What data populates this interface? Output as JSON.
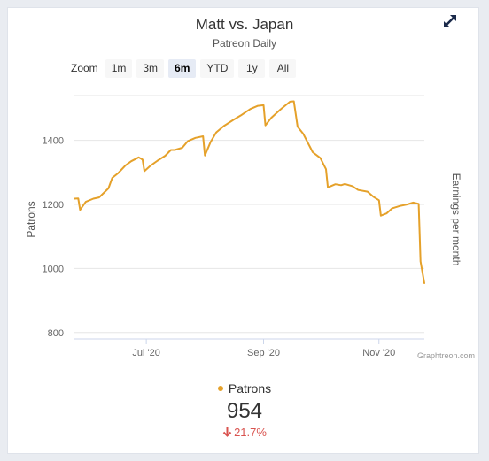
{
  "header": {
    "title": "Matt vs. Japan",
    "subtitle": "Patreon Daily"
  },
  "zoom": {
    "label": "Zoom",
    "buttons": [
      {
        "label": "1m",
        "active": false
      },
      {
        "label": "3m",
        "active": false
      },
      {
        "label": "6m",
        "active": true
      },
      {
        "label": "YTD",
        "active": false
      },
      {
        "label": "1y",
        "active": false
      },
      {
        "label": "All",
        "active": false
      }
    ]
  },
  "credit": "Graphtreon.com",
  "legend": {
    "series_label": "Patrons",
    "current_value": "954",
    "change": "21.7%"
  },
  "colors": {
    "series": "#e5a12a",
    "negative": "#d9534f",
    "grid": "#e6e6e6"
  },
  "icons": {
    "expand": "expand-arrows-icon",
    "change": "arrow-down-icon"
  },
  "chart_data": {
    "type": "line",
    "title": "Matt vs. Japan",
    "subtitle": "Patreon Daily",
    "ylabel": "Patrons",
    "y2label": "Earnings per month",
    "ylim": [
      780,
      1540
    ],
    "yticks": [
      800,
      1000,
      1200,
      1400
    ],
    "xlim": [
      "2020-05-24",
      "2020-11-25"
    ],
    "xticks": [
      {
        "label": "Jul '20",
        "date": "2020-07-01"
      },
      {
        "label": "Sep '20",
        "date": "2020-09-01"
      },
      {
        "label": "Nov '20",
        "date": "2020-11-01"
      }
    ],
    "grid": true,
    "legend": "bottom",
    "series": [
      {
        "name": "Patrons",
        "color": "#e5a12a",
        "points": [
          [
            "2020-05-24",
            1218
          ],
          [
            "2020-05-26",
            1219
          ],
          [
            "2020-05-27",
            1183
          ],
          [
            "2020-05-30",
            1208
          ],
          [
            "2020-06-03",
            1218
          ],
          [
            "2020-06-06",
            1222
          ],
          [
            "2020-06-11",
            1250
          ],
          [
            "2020-06-13",
            1283
          ],
          [
            "2020-06-16",
            1297
          ],
          [
            "2020-06-20",
            1322
          ],
          [
            "2020-06-23",
            1335
          ],
          [
            "2020-06-27",
            1347
          ],
          [
            "2020-06-29",
            1340
          ],
          [
            "2020-06-30",
            1304
          ],
          [
            "2020-07-03",
            1320
          ],
          [
            "2020-07-07",
            1337
          ],
          [
            "2020-07-11",
            1352
          ],
          [
            "2020-07-14",
            1370
          ],
          [
            "2020-07-16",
            1370
          ],
          [
            "2020-07-20",
            1377
          ],
          [
            "2020-07-23",
            1398
          ],
          [
            "2020-07-27",
            1408
          ],
          [
            "2020-07-31",
            1413
          ],
          [
            "2020-08-01",
            1353
          ],
          [
            "2020-08-04",
            1395
          ],
          [
            "2020-08-07",
            1425
          ],
          [
            "2020-08-11",
            1445
          ],
          [
            "2020-08-16",
            1464
          ],
          [
            "2020-08-20",
            1478
          ],
          [
            "2020-08-25",
            1498
          ],
          [
            "2020-08-29",
            1508
          ],
          [
            "2020-09-01",
            1510
          ],
          [
            "2020-09-02",
            1447
          ],
          [
            "2020-09-05",
            1470
          ],
          [
            "2020-09-10",
            1497
          ],
          [
            "2020-09-15",
            1521
          ],
          [
            "2020-09-17",
            1522
          ],
          [
            "2020-09-19",
            1443
          ],
          [
            "2020-09-22",
            1420
          ],
          [
            "2020-09-27",
            1363
          ],
          [
            "2020-10-01",
            1345
          ],
          [
            "2020-10-04",
            1310
          ],
          [
            "2020-10-05",
            1253
          ],
          [
            "2020-10-09",
            1263
          ],
          [
            "2020-10-12",
            1260
          ],
          [
            "2020-10-14",
            1264
          ],
          [
            "2020-10-18",
            1257
          ],
          [
            "2020-10-21",
            1245
          ],
          [
            "2020-10-26",
            1240
          ],
          [
            "2020-10-29",
            1224
          ],
          [
            "2020-11-01",
            1213
          ],
          [
            "2020-11-02",
            1165
          ],
          [
            "2020-11-05",
            1172
          ],
          [
            "2020-11-08",
            1188
          ],
          [
            "2020-11-12",
            1195
          ],
          [
            "2020-11-16",
            1200
          ],
          [
            "2020-11-19",
            1206
          ],
          [
            "2020-11-22",
            1202
          ],
          [
            "2020-11-23",
            1022
          ],
          [
            "2020-11-25",
            954
          ]
        ]
      }
    ]
  }
}
